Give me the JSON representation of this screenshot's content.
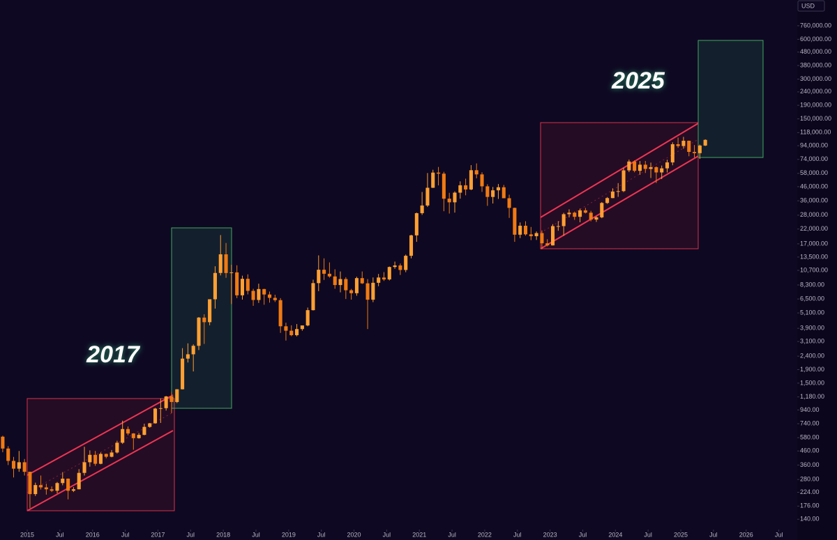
{
  "chart_data": {
    "type": "candlestick",
    "log_scale": true,
    "currency_label": "USD",
    "up_color": "#ffa033",
    "down_color": "#f07a12",
    "annotations": [
      "2017",
      "2025"
    ],
    "xlim": [
      "2014-08",
      "2026-10"
    ],
    "xticks": [
      {
        "value": "2015-01",
        "label": "2015"
      },
      {
        "value": "2015-07",
        "label": "Jul"
      },
      {
        "value": "2016-01",
        "label": "2016"
      },
      {
        "value": "2016-07",
        "label": "Jul"
      },
      {
        "value": "2017-01",
        "label": "2017"
      },
      {
        "value": "2017-07",
        "label": "Jul"
      },
      {
        "value": "2018-01",
        "label": "2018"
      },
      {
        "value": "2018-07",
        "label": "Jul"
      },
      {
        "value": "2019-01",
        "label": "2019"
      },
      {
        "value": "2019-07",
        "label": "Jul"
      },
      {
        "value": "2020-01",
        "label": "2020"
      },
      {
        "value": "2020-07",
        "label": "Jul"
      },
      {
        "value": "2021-01",
        "label": "2021"
      },
      {
        "value": "2021-07",
        "label": "Jul"
      },
      {
        "value": "2022-01",
        "label": "2022"
      },
      {
        "value": "2022-07",
        "label": "Jul"
      },
      {
        "value": "2023-01",
        "label": "2023"
      },
      {
        "value": "2023-07",
        "label": "Jul"
      },
      {
        "value": "2024-01",
        "label": "2024"
      },
      {
        "value": "2024-07",
        "label": "Jul"
      },
      {
        "value": "2025-01",
        "label": "2025"
      },
      {
        "value": "2025-07",
        "label": "Jul"
      },
      {
        "value": "2026-01",
        "label": "2026"
      },
      {
        "value": "2026-07",
        "label": "Jul"
      }
    ],
    "ylim": [
      117,
      1190000
    ],
    "yticks": [
      {
        "value": 760000,
        "label": "760,000.00"
      },
      {
        "value": 600000,
        "label": "600,000.00"
      },
      {
        "value": 480000,
        "label": "480,000.00"
      },
      {
        "value": 380000,
        "label": "380,000.00"
      },
      {
        "value": 300000,
        "label": "300,000.00"
      },
      {
        "value": 240000,
        "label": "240,000.00"
      },
      {
        "value": 190000,
        "label": "190,000.00"
      },
      {
        "value": 150000,
        "label": "150,000.00"
      },
      {
        "value": 118000,
        "label": "118,000.00"
      },
      {
        "value": 94000,
        "label": "94,000.00"
      },
      {
        "value": 74000,
        "label": "74,000.00"
      },
      {
        "value": 58000,
        "label": "58,000.00"
      },
      {
        "value": 46000,
        "label": "46,000.00"
      },
      {
        "value": 36000,
        "label": "36,000.00"
      },
      {
        "value": 28000,
        "label": "28,000.00"
      },
      {
        "value": 22000,
        "label": "22,000.00"
      },
      {
        "value": 17000,
        "label": "17,000.00"
      },
      {
        "value": 13500,
        "label": "13,500.00"
      },
      {
        "value": 10700,
        "label": "10,700.00"
      },
      {
        "value": 8300,
        "label": "8,300.00"
      },
      {
        "value": 6500,
        "label": "6,500.00"
      },
      {
        "value": 5100,
        "label": "5,100.00"
      },
      {
        "value": 3900,
        "label": "3,900.00"
      },
      {
        "value": 3100,
        "label": "3,100.00"
      },
      {
        "value": 2400,
        "label": "2,400.00"
      },
      {
        "value": 1900,
        "label": "1,900.00"
      },
      {
        "value": 1500,
        "label": "1,500.00"
      },
      {
        "value": 1180,
        "label": "1,180.00"
      },
      {
        "value": 940,
        "label": "940.00"
      },
      {
        "value": 740,
        "label": "740.00"
      },
      {
        "value": 580,
        "label": "580.00"
      },
      {
        "value": 460,
        "label": "460.00"
      },
      {
        "value": 360,
        "label": "360.00"
      },
      {
        "value": 280,
        "label": "280.00"
      },
      {
        "value": 224,
        "label": "224.00"
      },
      {
        "value": 176,
        "label": "176.00"
      },
      {
        "value": 140,
        "label": "140.00"
      }
    ],
    "x": [
      "2014-08",
      "2014-09",
      "2014-10",
      "2014-11",
      "2014-12",
      "2015-01",
      "2015-02",
      "2015-03",
      "2015-04",
      "2015-05",
      "2015-06",
      "2015-07",
      "2015-08",
      "2015-09",
      "2015-10",
      "2015-11",
      "2015-12",
      "2016-01",
      "2016-02",
      "2016-03",
      "2016-04",
      "2016-05",
      "2016-06",
      "2016-07",
      "2016-08",
      "2016-09",
      "2016-10",
      "2016-11",
      "2016-12",
      "2017-01",
      "2017-02",
      "2017-03",
      "2017-04",
      "2017-05",
      "2017-06",
      "2017-07",
      "2017-08",
      "2017-09",
      "2017-10",
      "2017-11",
      "2017-12",
      "2018-01",
      "2018-02",
      "2018-03",
      "2018-04",
      "2018-05",
      "2018-06",
      "2018-07",
      "2018-08",
      "2018-09",
      "2018-10",
      "2018-11",
      "2018-12",
      "2019-01",
      "2019-02",
      "2019-03",
      "2019-04",
      "2019-05",
      "2019-06",
      "2019-07",
      "2019-08",
      "2019-09",
      "2019-10",
      "2019-11",
      "2019-12",
      "2020-01",
      "2020-02",
      "2020-03",
      "2020-04",
      "2020-05",
      "2020-06",
      "2020-07",
      "2020-08",
      "2020-09",
      "2020-10",
      "2020-11",
      "2020-12",
      "2021-01",
      "2021-02",
      "2021-03",
      "2021-04",
      "2021-05",
      "2021-06",
      "2021-07",
      "2021-08",
      "2021-09",
      "2021-10",
      "2021-11",
      "2021-12",
      "2022-01",
      "2022-02",
      "2022-03",
      "2022-04",
      "2022-05",
      "2022-06",
      "2022-07",
      "2022-08",
      "2022-09",
      "2022-10",
      "2022-11",
      "2022-12",
      "2023-01",
      "2023-02",
      "2023-03",
      "2023-04",
      "2023-05",
      "2023-06",
      "2023-07",
      "2023-08",
      "2023-09",
      "2023-10",
      "2023-11",
      "2023-12",
      "2024-01",
      "2024-02",
      "2024-03",
      "2024-04",
      "2024-05",
      "2024-06",
      "2024-07",
      "2024-08",
      "2024-09",
      "2024-10",
      "2024-11",
      "2024-12",
      "2025-01",
      "2025-02",
      "2025-03",
      "2025-04",
      "2025-05"
    ],
    "open": [
      590,
      480,
      387,
      338,
      378,
      320,
      217,
      254,
      244,
      236,
      230,
      263,
      284,
      230,
      236,
      314,
      378,
      430,
      368,
      437,
      416,
      448,
      531,
      674,
      624,
      575,
      609,
      700,
      745,
      963,
      970,
      1190,
      1080,
      1348,
      2300,
      2480,
      2875,
      4700,
      4340,
      6470,
      10230,
      14160,
      10220,
      10330,
      6930,
      9240,
      7490,
      6390,
      7730,
      7030,
      6630,
      6370,
      4040,
      3740,
      3460,
      3850,
      4100,
      5350,
      8570,
      10820,
      10090,
      9630,
      8290,
      9200,
      7570,
      7190,
      9350,
      8540,
      6420,
      8620,
      9450,
      9140,
      11350,
      11660,
      10780,
      13800,
      19700,
      28990,
      33140,
      45140,
      58800,
      57720,
      37330,
      35040,
      41460,
      47130,
      43820,
      61300,
      57000,
      46300,
      38480,
      43190,
      45540,
      37630,
      31790,
      19930,
      23300,
      20050,
      19420,
      20490,
      17160,
      16540,
      23130,
      23150,
      28480,
      29250,
      27220,
      30470,
      29230,
      25930,
      26970,
      34640,
      37720,
      42280,
      42580,
      61130,
      71330,
      60640,
      67490,
      62680,
      64630,
      58970,
      63330,
      70220,
      96410,
      93430,
      102400,
      84350,
      82550,
      94200
    ],
    "high": [
      600,
      500,
      415,
      460,
      400,
      320,
      265,
      300,
      260,
      248,
      268,
      318,
      285,
      245,
      335,
      495,
      465,
      460,
      448,
      440,
      468,
      550,
      780,
      705,
      628,
      630,
      740,
      750,
      975,
      1150,
      1200,
      1290,
      1350,
      2760,
      3000,
      2950,
      4750,
      4980,
      6470,
      11500,
      19800,
      17250,
      11800,
      11700,
      9760,
      9990,
      7760,
      8490,
      7760,
      7400,
      7000,
      6600,
      4300,
      4110,
      4200,
      4100,
      5600,
      9100,
      13900,
      13200,
      12300,
      10900,
      10500,
      9500,
      7750,
      9580,
      10500,
      9190,
      9460,
      10060,
      10380,
      11450,
      12470,
      12070,
      14100,
      19900,
      29300,
      41950,
      58350,
      61790,
      64860,
      59590,
      41330,
      42400,
      50500,
      52920,
      67000,
      69000,
      59120,
      47990,
      45800,
      48200,
      47450,
      40000,
      31950,
      24670,
      25200,
      22800,
      21080,
      21480,
      18400,
      23950,
      25250,
      29190,
      31000,
      29820,
      31390,
      31800,
      30200,
      27490,
      35200,
      38400,
      44700,
      48970,
      64000,
      73750,
      72770,
      71950,
      71990,
      70000,
      65600,
      66500,
      73600,
      99650,
      108300,
      109600,
      102750,
      95000,
      95750,
      105000
    ],
    "low": [
      450,
      360,
      290,
      320,
      300,
      170,
      210,
      235,
      215,
      225,
      220,
      253,
      198,
      225,
      236,
      300,
      350,
      355,
      365,
      405,
      412,
      440,
      520,
      605,
      470,
      570,
      605,
      690,
      740,
      750,
      930,
      890,
      1060,
      1345,
      2150,
      1840,
      2670,
      2970,
      4110,
      5500,
      9800,
      9400,
      5950,
      6600,
      6430,
      7040,
      5770,
      6070,
      5880,
      6100,
      6170,
      3600,
      3150,
      3400,
      3390,
      3740,
      4040,
      5320,
      7450,
      9060,
      9420,
      7770,
      7300,
      6500,
      6430,
      6880,
      8440,
      3850,
      6150,
      8120,
      8900,
      8980,
      11000,
      9880,
      10370,
      13200,
      17600,
      28130,
      32300,
      45000,
      47040,
      30000,
      28800,
      29280,
      37330,
      39600,
      43280,
      53250,
      42000,
      32950,
      34320,
      37160,
      37700,
      26700,
      17600,
      18780,
      19600,
      18130,
      18190,
      15480,
      16260,
      16500,
      21350,
      19550,
      26940,
      25810,
      24750,
      28860,
      25160,
      24900,
      26560,
      34100,
      37630,
      38550,
      41880,
      59320,
      59120,
      56550,
      58400,
      53500,
      49100,
      52550,
      58900,
      66800,
      90500,
      89200,
      78200,
      76600,
      74600,
      93400
    ],
    "close": [
      480,
      387,
      338,
      378,
      320,
      217,
      254,
      244,
      236,
      230,
      263,
      284,
      230,
      236,
      314,
      378,
      430,
      368,
      437,
      416,
      448,
      531,
      674,
      624,
      575,
      609,
      700,
      745,
      963,
      970,
      1190,
      1080,
      1348,
      2300,
      2480,
      2875,
      4700,
      4340,
      6470,
      10230,
      14160,
      10220,
      10330,
      6930,
      9240,
      7490,
      6390,
      7730,
      7030,
      6630,
      6370,
      4040,
      3740,
      3460,
      3850,
      4100,
      5350,
      8570,
      10820,
      10090,
      9630,
      8290,
      9200,
      7570,
      7190,
      9350,
      8540,
      6420,
      8620,
      9450,
      9140,
      11350,
      11660,
      10780,
      13800,
      19700,
      28990,
      33140,
      45140,
      58800,
      57720,
      37330,
      35040,
      41460,
      47130,
      43820,
      61300,
      57000,
      46300,
      38480,
      43190,
      45540,
      37630,
      31790,
      19930,
      23300,
      20050,
      19420,
      20490,
      17160,
      16540,
      23130,
      23150,
      28480,
      29250,
      27220,
      30470,
      29230,
      25930,
      26970,
      34640,
      37720,
      42280,
      42580,
      61130,
      71330,
      60640,
      67490,
      62680,
      64630,
      58970,
      63330,
      70220,
      96410,
      93430,
      102400,
      84350,
      82550,
      94200,
      104000
    ]
  }
}
